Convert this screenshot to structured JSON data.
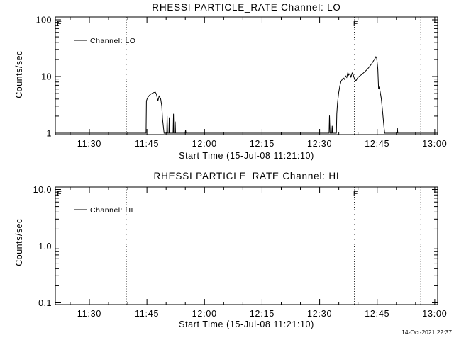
{
  "figure": {
    "background": "#ffffff",
    "foreground": "#000000",
    "timestamp": "14-Oct-2021 22:37"
  },
  "chart_data": [
    {
      "type": "line",
      "title": "RHESSI PARTICLE_RATE Channel: LO",
      "xlabel": "Start Time (15-Jul-08 11:21:10)",
      "ylabel": "Counts/sec",
      "yscale": "log",
      "ylim": [
        1,
        100
      ],
      "grid": false,
      "legend_position": "top-left-inside",
      "legend_label": "Channel: LO",
      "x_start": "11:21:10",
      "x_range_minutes": [
        0,
        99.2
      ],
      "x_minor_interval_minutes": 5,
      "x_ticks": [
        {
          "t": 8.8333,
          "label": "11:30"
        },
        {
          "t": 23.8333,
          "label": "11:45"
        },
        {
          "t": 38.8333,
          "label": "12:00"
        },
        {
          "t": 53.8333,
          "label": "12:15"
        },
        {
          "t": 68.8333,
          "label": "12:30"
        },
        {
          "t": 83.8333,
          "label": "12:45"
        },
        {
          "t": 98.8333,
          "label": "13:00"
        }
      ],
      "y_ticks": [
        {
          "v": 1,
          "label": "1"
        },
        {
          "v": 10,
          "label": "10"
        },
        {
          "v": 100,
          "label": "100"
        }
      ],
      "eclipse_lines_minutes": [
        18.45,
        77.9,
        95.2
      ],
      "eclipse_markers": [
        {
          "t": 1.0,
          "label": "E"
        },
        {
          "t": 78.2,
          "label": "E"
        }
      ],
      "series": [
        {
          "name": "Channel: LO",
          "points": [
            [
              0.4,
              1
            ],
            [
              23.6,
              1
            ],
            [
              23.7,
              3.7
            ],
            [
              24.0,
              4.2
            ],
            [
              24.3,
              4.5
            ],
            [
              24.7,
              4.8
            ],
            [
              25.1,
              5.0
            ],
            [
              25.6,
              5.2
            ],
            [
              26.0,
              5.3
            ],
            [
              26.3,
              4.9
            ],
            [
              26.7,
              3.7
            ],
            [
              27.0,
              4.5
            ],
            [
              27.4,
              4.1
            ],
            [
              27.7,
              3.0
            ],
            [
              27.9,
              1.8
            ],
            [
              28.3,
              1.0
            ],
            [
              29.0,
              1.0
            ],
            [
              29.1,
              2.0
            ],
            [
              29.2,
              1.0
            ],
            [
              29.55,
              1.0
            ],
            [
              29.65,
              1.9
            ],
            [
              29.75,
              1.0
            ],
            [
              30.65,
              1.0
            ],
            [
              30.75,
              2.2
            ],
            [
              30.85,
              1.0
            ],
            [
              31.1,
              1.0
            ],
            [
              31.2,
              1.6
            ],
            [
              31.3,
              1.0
            ],
            [
              33.8,
              1.0
            ],
            [
              33.9,
              1.15
            ],
            [
              34.0,
              1.0
            ],
            [
              71.3,
              1.0
            ],
            [
              71.4,
              2.05
            ],
            [
              71.55,
              1.0
            ],
            [
              72.0,
              1.0
            ],
            [
              72.1,
              1.35
            ],
            [
              72.2,
              1.0
            ],
            [
              73.2,
              1.0
            ],
            [
              73.3,
              2.2
            ],
            [
              73.5,
              3.4
            ],
            [
              73.8,
              5.2
            ],
            [
              74.1,
              6.8
            ],
            [
              74.4,
              8.2
            ],
            [
              74.7,
              8.8
            ],
            [
              75.0,
              9.4
            ],
            [
              75.3,
              8.9
            ],
            [
              75.6,
              10.2
            ],
            [
              75.9,
              9.6
            ],
            [
              76.2,
              11.8
            ],
            [
              76.4,
              10.6
            ],
            [
              76.7,
              11.2
            ],
            [
              77.0,
              9.8
            ],
            [
              77.3,
              11.5
            ],
            [
              77.6,
              10.7
            ],
            [
              77.9,
              9.2
            ],
            [
              78.3,
              8.4
            ],
            [
              78.7,
              9.4
            ],
            [
              79.1,
              10.0
            ],
            [
              79.6,
              10.6
            ],
            [
              80.1,
              11.3
            ],
            [
              80.6,
              12.1
            ],
            [
              81.1,
              13.1
            ],
            [
              81.6,
              14.3
            ],
            [
              82.1,
              15.8
            ],
            [
              82.6,
              17.6
            ],
            [
              83.0,
              19.5
            ],
            [
              83.3,
              21.0
            ],
            [
              83.5,
              22.3
            ],
            [
              83.7,
              21.3
            ],
            [
              83.9,
              16.0
            ],
            [
              84.0,
              13.7
            ],
            [
              84.2,
              6.0
            ],
            [
              84.4,
              6.5
            ],
            [
              84.6,
              5.4
            ],
            [
              84.9,
              4.1
            ],
            [
              85.2,
              2.6
            ],
            [
              85.6,
              1.3
            ],
            [
              85.8,
              1.0
            ],
            [
              89.0,
              1.0
            ],
            [
              89.1,
              1.25
            ],
            [
              89.2,
              1.0
            ],
            [
              98.8,
              1.0
            ]
          ]
        }
      ]
    },
    {
      "type": "line",
      "title": "RHESSI PARTICLE_RATE Channel: HI",
      "xlabel": "Start Time (15-Jul-08 11:21:10)",
      "ylabel": "Counts/sec",
      "yscale": "log",
      "ylim": [
        0.1,
        10
      ],
      "grid": false,
      "legend_position": "top-left-inside",
      "legend_label": "Channel: HI",
      "x_start": "11:21:10",
      "x_range_minutes": [
        0,
        99.2
      ],
      "x_minor_interval_minutes": 5,
      "x_ticks": [
        {
          "t": 8.8333,
          "label": "11:30"
        },
        {
          "t": 23.8333,
          "label": "11:45"
        },
        {
          "t": 38.8333,
          "label": "12:00"
        },
        {
          "t": 53.8333,
          "label": "12:15"
        },
        {
          "t": 68.8333,
          "label": "12:30"
        },
        {
          "t": 83.8333,
          "label": "12:45"
        },
        {
          "t": 98.8333,
          "label": "13:00"
        }
      ],
      "y_ticks": [
        {
          "v": 0.1,
          "label": "0.1"
        },
        {
          "v": 1,
          "label": "1.0"
        },
        {
          "v": 10,
          "label": "10.0"
        }
      ],
      "eclipse_lines_minutes": [
        18.45,
        77.9,
        95.2
      ],
      "eclipse_markers": [
        {
          "t": 1.0,
          "label": "E"
        },
        {
          "t": 78.2,
          "label": "E"
        }
      ],
      "series": [
        {
          "name": "Channel: HI",
          "points": []
        }
      ]
    }
  ]
}
